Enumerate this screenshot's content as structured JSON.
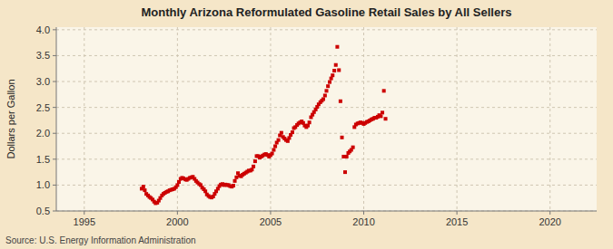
{
  "chart_data": {
    "type": "scatter",
    "title": "Monthly Arizona Reformulated Gasoline Retail Sales by All Sellers",
    "ylabel": "Dollars per Gallon",
    "source": "Source: U.S. Energy Information Administration",
    "color": "#CC0000",
    "marker": "square",
    "grid": true,
    "xlim": [
      1993.5,
      2022.5
    ],
    "ylim": [
      0.5,
      4.05
    ],
    "xticks": [
      1995,
      2000,
      2005,
      2010,
      2015,
      2020
    ],
    "yticks": [
      0.5,
      {
        "value": 1,
        "label": "1.0"
      },
      1.5,
      {
        "value": 2,
        "label": "2.0"
      },
      2.5,
      {
        "value": 3,
        "label": "3.0"
      },
      3.5,
      {
        "value": 4,
        "label": "4.0"
      }
    ],
    "x": [
      1998.08,
      1998.17,
      1998.25,
      1998.33,
      1998.42,
      1998.5,
      1998.58,
      1998.67,
      1998.75,
      1998.83,
      1998.92,
      1999.0,
      1999.08,
      1999.17,
      1999.25,
      1999.33,
      1999.42,
      1999.5,
      1999.58,
      1999.67,
      1999.75,
      1999.83,
      1999.92,
      2000.0,
      2000.08,
      2000.17,
      2000.25,
      2000.33,
      2000.42,
      2000.5,
      2000.58,
      2000.67,
      2000.75,
      2000.83,
      2000.92,
      2001.0,
      2001.08,
      2001.17,
      2001.25,
      2001.33,
      2001.42,
      2001.5,
      2001.58,
      2001.67,
      2001.75,
      2001.83,
      2001.92,
      2002.0,
      2002.08,
      2002.17,
      2002.25,
      2002.33,
      2002.42,
      2002.5,
      2002.58,
      2002.67,
      2002.75,
      2002.83,
      2002.92,
      2003.0,
      2003.08,
      2003.17,
      2003.25,
      2003.33,
      2003.42,
      2003.5,
      2003.58,
      2003.67,
      2003.75,
      2003.83,
      2003.92,
      2004.0,
      2004.08,
      2004.17,
      2004.25,
      2004.33,
      2004.42,
      2004.5,
      2004.58,
      2004.67,
      2004.75,
      2004.83,
      2004.92,
      2005.0,
      2005.08,
      2005.17,
      2005.25,
      2005.33,
      2005.42,
      2005.5,
      2005.58,
      2005.67,
      2005.75,
      2005.83,
      2005.92,
      2006.0,
      2006.08,
      2006.17,
      2006.25,
      2006.33,
      2006.42,
      2006.5,
      2006.58,
      2006.67,
      2006.75,
      2006.83,
      2006.92,
      2007.0,
      2007.08,
      2007.17,
      2007.25,
      2007.33,
      2007.42,
      2007.5,
      2007.58,
      2007.67,
      2007.75,
      2007.83,
      2007.92,
      2008.0,
      2008.08,
      2008.17,
      2008.25,
      2008.33,
      2008.42,
      2008.5,
      2008.58,
      2008.67,
      2008.75,
      2008.83,
      2008.92,
      2009.0,
      2009.08,
      2009.17,
      2009.25,
      2009.33,
      2009.42,
      2009.5,
      2009.58,
      2009.67,
      2009.75,
      2009.83,
      2009.92,
      2010.0,
      2010.08,
      2010.17,
      2010.25,
      2010.33,
      2010.42,
      2010.5,
      2010.58,
      2010.67,
      2010.75,
      2010.83,
      2010.92,
      2011.0,
      2011.08,
      2011.17
    ],
    "values": [
      0.93,
      0.97,
      0.9,
      0.83,
      0.8,
      0.77,
      0.75,
      0.72,
      0.68,
      0.65,
      0.66,
      0.7,
      0.75,
      0.8,
      0.83,
      0.85,
      0.87,
      0.88,
      0.9,
      0.91,
      0.92,
      0.93,
      0.96,
      1.0,
      1.06,
      1.12,
      1.14,
      1.13,
      1.11,
      1.1,
      1.12,
      1.14,
      1.15,
      1.16,
      1.12,
      1.08,
      1.05,
      1.02,
      1.0,
      0.95,
      0.92,
      0.88,
      0.82,
      0.79,
      0.77,
      0.76,
      0.78,
      0.83,
      0.88,
      0.93,
      0.98,
      1.01,
      1.02,
      1.0,
      1.01,
      1.0,
      1.0,
      0.98,
      0.97,
      0.99,
      1.08,
      1.15,
      1.23,
      1.18,
      1.17,
      1.2,
      1.22,
      1.24,
      1.26,
      1.28,
      1.28,
      1.3,
      1.36,
      1.46,
      1.56,
      1.56,
      1.53,
      1.55,
      1.57,
      1.59,
      1.6,
      1.58,
      1.55,
      1.58,
      1.61,
      1.68,
      1.75,
      1.82,
      1.87,
      1.96,
      2.01,
      1.93,
      1.9,
      1.87,
      1.85,
      1.91,
      1.97,
      2.02,
      2.1,
      2.12,
      2.16,
      2.19,
      2.21,
      2.23,
      2.2,
      2.15,
      2.12,
      2.15,
      2.21,
      2.31,
      2.36,
      2.41,
      2.46,
      2.51,
      2.56,
      2.6,
      2.63,
      2.66,
      2.73,
      2.82,
      2.91,
      2.99,
      3.06,
      3.12,
      3.21,
      3.32,
      3.67,
      3.22,
      2.62,
      1.92,
      1.55,
      1.25,
      1.55,
      1.62,
      1.65,
      1.68,
      1.73,
      2.12,
      2.17,
      2.19,
      2.2,
      2.21,
      2.2,
      2.18,
      2.2,
      2.22,
      2.23,
      2.25,
      2.27,
      2.28,
      2.3,
      2.3,
      2.32,
      2.35,
      2.33,
      2.4,
      2.82,
      2.28
    ]
  }
}
